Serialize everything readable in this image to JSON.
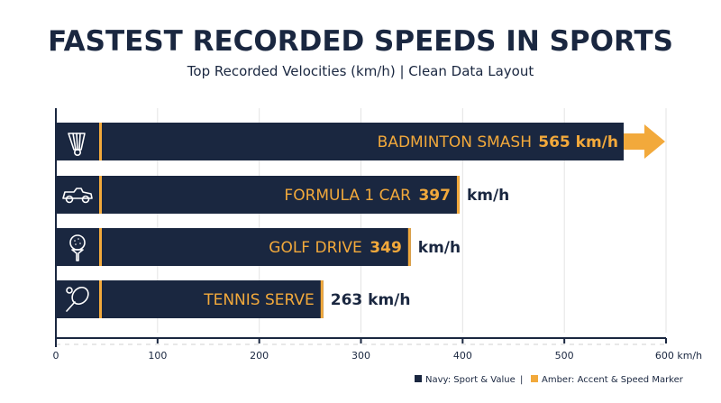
{
  "chart_data": {
    "type": "bar",
    "orientation": "horizontal",
    "title": "FASTEST RECORDED SPEEDS IN SPORTS",
    "subtitle": "Top Recorded Velocities (km/h) | Clean Data Layout",
    "categories": [
      "BADMINTON SMASH",
      "FORMULA 1 CAR",
      "GOLF DRIVE",
      "TENNIS SERVE"
    ],
    "values": [
      565,
      397,
      349,
      263
    ],
    "value_labels": [
      "565 km/h",
      "397",
      "349",
      "263 km/h"
    ],
    "unit_labels": [
      "",
      "km/h",
      "km/h",
      ""
    ],
    "icons": [
      "shuttlecock-icon",
      "race-car-icon",
      "golf-ball-on-tee-icon",
      "tennis-racket-icon"
    ],
    "overflow_arrow_on": "BADMINTON SMASH",
    "xlim": [
      0,
      600
    ],
    "xticks": [
      0,
      100,
      200,
      300,
      400,
      500,
      600
    ],
    "xtick_labels": [
      "0",
      "100",
      "200",
      "300",
      "400",
      "500",
      "600 km/h"
    ],
    "grid": true,
    "legend": {
      "placement": "bottom-right",
      "items": [
        {
          "label": "Navy: Sport & Value",
          "color": "#1a2740"
        },
        {
          "label": "Amber: Accent & Speed Marker",
          "color": "#f2a93b"
        }
      ],
      "separator": "|"
    }
  },
  "colors": {
    "navy": "#1a2740",
    "amber": "#f2a93b",
    "grid": "#e3e3e3",
    "text": "#1a2740"
  }
}
